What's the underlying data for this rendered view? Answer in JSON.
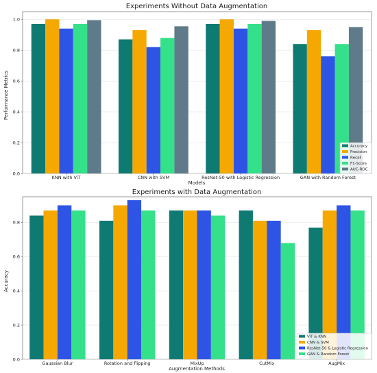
{
  "chart_data": [
    {
      "type": "bar",
      "title": "Experiments Without Data Augmentation",
      "xlabel": "Models",
      "ylabel": "Performance Metrics",
      "categories": [
        "KNN with ViT",
        "CNN with SVM",
        "ResNet-50 with Logistic Regression",
        "GAN with Random Forest"
      ],
      "ylim": [
        0,
        1.05
      ],
      "yticks": [
        "0.0",
        "0.2",
        "0.4",
        "0.6",
        "0.8",
        "1.0"
      ],
      "grid": true,
      "legend_position": "bottom-right",
      "series": [
        {
          "name": "Accuracy",
          "color": "#0f7a72",
          "values": [
            0.97,
            0.87,
            0.97,
            0.84
          ]
        },
        {
          "name": "Precision",
          "color": "#f5a800",
          "values": [
            1.0,
            0.93,
            1.0,
            0.93
          ]
        },
        {
          "name": "Recall",
          "color": "#2e54e6",
          "values": [
            0.94,
            0.82,
            0.94,
            0.76
          ]
        },
        {
          "name": "F1-Score",
          "color": "#35e08a",
          "values": [
            0.97,
            0.88,
            0.97,
            0.84
          ]
        },
        {
          "name": "AUC-ROC",
          "color": "#5f7a89",
          "values": [
            0.995,
            0.955,
            0.99,
            0.95
          ]
        }
      ]
    },
    {
      "type": "bar",
      "title": "Experiments with Data Augmentation",
      "xlabel": "Augmentation Methods",
      "ylabel": "Accuracy",
      "categories": [
        "Gaussian Blur",
        "Rotation and flipping",
        "MixUp",
        "CutMix",
        "AugMix"
      ],
      "ylim": [
        0,
        0.95
      ],
      "yticks": [
        "0.0",
        "0.2",
        "0.4",
        "0.6",
        "0.8"
      ],
      "grid": true,
      "legend_position": "bottom-right",
      "series": [
        {
          "name": "ViT & KNN",
          "color": "#0f7a72",
          "values": [
            0.84,
            0.81,
            0.87,
            0.87,
            0.77
          ]
        },
        {
          "name": "CNN & SVM",
          "color": "#f5a800",
          "values": [
            0.87,
            0.9,
            0.87,
            0.81,
            0.87
          ]
        },
        {
          "name": "ResNet-50 & Logistic Regression",
          "color": "#2e54e6",
          "values": [
            0.9,
            0.93,
            0.87,
            0.81,
            0.9
          ]
        },
        {
          "name": "GAN & Random Forest",
          "color": "#35e08a",
          "values": [
            0.87,
            0.87,
            0.84,
            0.68,
            0.87
          ]
        }
      ]
    }
  ]
}
